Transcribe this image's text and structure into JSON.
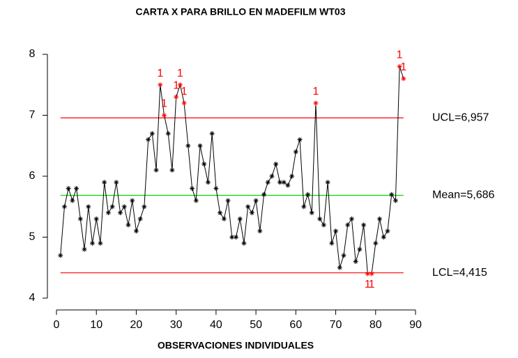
{
  "chart_data": {
    "type": "control",
    "title": "CARTA X PARA BRILLO EN MADEFILM WT03",
    "x_label": "OBSERVACIONES INDIVIDUALES",
    "x": [
      1,
      2,
      3,
      4,
      5,
      6,
      7,
      8,
      9,
      10,
      11,
      12,
      13,
      14,
      15,
      16,
      17,
      18,
      19,
      20,
      21,
      22,
      23,
      24,
      25,
      26,
      27,
      28,
      29,
      30,
      31,
      32,
      33,
      34,
      35,
      36,
      37,
      38,
      39,
      40,
      41,
      42,
      43,
      44,
      45,
      46,
      47,
      48,
      49,
      50,
      51,
      52,
      53,
      54,
      55,
      56,
      57,
      58,
      59,
      60,
      61,
      62,
      63,
      64,
      65,
      66,
      67,
      68,
      69,
      70,
      71,
      72,
      73,
      74,
      75,
      76,
      77,
      78,
      79,
      80,
      81,
      82,
      83,
      84,
      85,
      86,
      87
    ],
    "values": [
      4.7,
      5.5,
      5.8,
      5.6,
      5.8,
      5.3,
      4.8,
      5.5,
      4.9,
      5.3,
      4.9,
      5.9,
      5.4,
      5.5,
      5.9,
      5.4,
      5.5,
      5.2,
      5.6,
      5.1,
      5.3,
      5.5,
      6.6,
      6.7,
      6.1,
      7.5,
      7.0,
      6.7,
      6.1,
      7.3,
      7.5,
      7.2,
      6.5,
      5.8,
      5.6,
      6.5,
      6.2,
      5.9,
      6.7,
      5.8,
      5.4,
      5.3,
      5.6,
      5.0,
      5.0,
      5.3,
      4.9,
      5.5,
      5.4,
      5.6,
      5.1,
      5.7,
      5.9,
      6.0,
      6.2,
      5.9,
      5.9,
      5.85,
      6.0,
      6.4,
      6.6,
      5.5,
      5.7,
      5.4,
      7.2,
      5.3,
      5.2,
      5.9,
      4.9,
      5.1,
      4.5,
      4.7,
      5.2,
      5.3,
      4.6,
      4.8,
      5.2,
      4.4,
      4.4,
      4.9,
      5.3,
      5.0,
      5.1,
      5.7,
      5.6,
      7.8,
      7.6
    ],
    "point_labels": [
      null,
      null,
      null,
      null,
      null,
      null,
      null,
      null,
      null,
      null,
      null,
      null,
      null,
      null,
      null,
      null,
      null,
      null,
      null,
      null,
      null,
      null,
      null,
      null,
      null,
      "1",
      "1",
      null,
      null,
      "1",
      "1",
      "1",
      null,
      null,
      null,
      null,
      null,
      null,
      null,
      null,
      null,
      null,
      null,
      null,
      null,
      null,
      null,
      null,
      null,
      null,
      null,
      null,
      null,
      null,
      null,
      null,
      null,
      null,
      null,
      null,
      null,
      null,
      null,
      null,
      "1",
      null,
      null,
      null,
      null,
      null,
      null,
      null,
      null,
      null,
      null,
      null,
      null,
      "1",
      "1",
      null,
      null,
      null,
      null,
      null,
      null,
      "1",
      "1"
    ],
    "color": "#000000",
    "out_color": "#ff0000",
    "control_lines": [
      {
        "label": "UCL=6,957",
        "value": 6.957,
        "color": "#ff0000"
      },
      {
        "label": "Mean=5,686",
        "value": 5.686,
        "color": "#00dd00"
      },
      {
        "label": "LCL=4,415",
        "value": 4.415,
        "color": "#ff0000"
      }
    ],
    "xlim": [
      0,
      90
    ],
    "xticks": [
      0,
      10,
      20,
      30,
      40,
      50,
      60,
      70,
      80,
      90
    ],
    "ylim": [
      4,
      8
    ],
    "yticks": [
      4,
      5,
      6,
      7,
      8
    ]
  }
}
